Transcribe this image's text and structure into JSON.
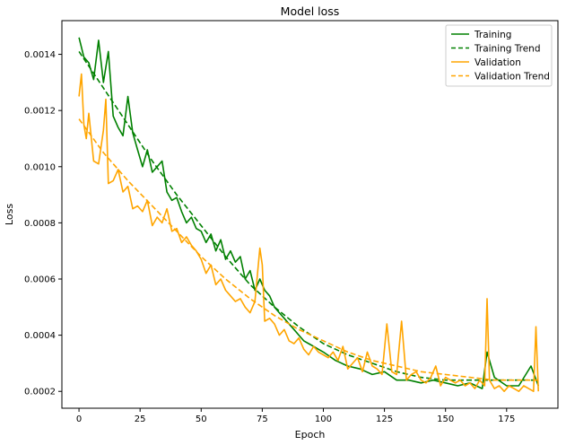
{
  "chart_data": {
    "type": "line",
    "title": "Model loss",
    "xlabel": "Epoch",
    "ylabel": "Loss",
    "xlim": [
      -7,
      196
    ],
    "ylim": [
      0.00014,
      0.00152
    ],
    "xticks": [
      0,
      25,
      50,
      75,
      100,
      125,
      150,
      175
    ],
    "yticks": [
      0.0002,
      0.0004,
      0.0006,
      0.0008,
      0.001,
      0.0012,
      0.0014
    ],
    "xtick_labels": [
      "0",
      "25",
      "50",
      "75",
      "100",
      "125",
      "150",
      "175"
    ],
    "ytick_labels": [
      "0.0002",
      "0.0004",
      "0.0006",
      "0.0008",
      "0.0010",
      "0.0012",
      "0.0014"
    ],
    "grid": false,
    "legend_position": "top-right",
    "series": [
      {
        "name": "Training",
        "color": "#008000",
        "dash": "solid",
        "x": [
          0,
          2,
          4,
          6,
          8,
          10,
          12,
          14,
          16,
          18,
          20,
          22,
          24,
          26,
          28,
          30,
          32,
          34,
          36,
          38,
          40,
          42,
          44,
          46,
          48,
          50,
          52,
          54,
          56,
          58,
          60,
          62,
          64,
          66,
          68,
          70,
          72,
          74,
          76,
          78,
          80,
          82,
          84,
          86,
          88,
          90,
          92,
          94,
          96,
          98,
          100,
          105,
          110,
          115,
          120,
          125,
          130,
          135,
          140,
          145,
          150,
          155,
          160,
          165,
          167,
          170,
          175,
          180,
          185,
          188
        ],
        "y": [
          0.00146,
          0.00139,
          0.00137,
          0.00131,
          0.00145,
          0.0013,
          0.00141,
          0.00118,
          0.00114,
          0.00111,
          0.00125,
          0.00112,
          0.00106,
          0.001,
          0.00106,
          0.00098,
          0.001,
          0.00102,
          0.00091,
          0.00088,
          0.00089,
          0.00084,
          0.0008,
          0.00082,
          0.00078,
          0.00077,
          0.00073,
          0.00076,
          0.0007,
          0.00074,
          0.00067,
          0.0007,
          0.00066,
          0.00068,
          0.0006,
          0.00063,
          0.00056,
          0.0006,
          0.00056,
          0.00054,
          0.0005,
          0.00048,
          0.00046,
          0.00044,
          0.00042,
          0.0004,
          0.00038,
          0.00037,
          0.00036,
          0.00035,
          0.00034,
          0.00031,
          0.00029,
          0.00028,
          0.00026,
          0.00027,
          0.00024,
          0.00024,
          0.00023,
          0.00024,
          0.00023,
          0.00022,
          0.00023,
          0.00021,
          0.00034,
          0.00025,
          0.00022,
          0.00022,
          0.00029,
          0.00022
        ]
      },
      {
        "name": "Training Trend",
        "color": "#008000",
        "dash": "dashed",
        "x": [
          0,
          10,
          20,
          30,
          40,
          50,
          60,
          70,
          80,
          90,
          100,
          110,
          120,
          130,
          140,
          150,
          160,
          170,
          180,
          188
        ],
        "y": [
          0.00141,
          0.00128,
          0.00115,
          0.00102,
          0.0009,
          0.00079,
          0.00068,
          0.00058,
          0.0005,
          0.00043,
          0.00037,
          0.00033,
          0.0003,
          0.00027,
          0.00025,
          0.00024,
          0.00024,
          0.00024,
          0.00024,
          0.00024
        ]
      },
      {
        "name": "Validation",
        "color": "#FFA500",
        "dash": "solid",
        "x": [
          0,
          1,
          2,
          3,
          4,
          6,
          8,
          10,
          11,
          12,
          14,
          16,
          18,
          20,
          22,
          24,
          26,
          28,
          30,
          32,
          34,
          36,
          38,
          40,
          42,
          44,
          46,
          48,
          50,
          52,
          54,
          56,
          58,
          60,
          62,
          64,
          66,
          68,
          70,
          72,
          74,
          75,
          76,
          78,
          80,
          82,
          84,
          86,
          88,
          90,
          92,
          94,
          96,
          98,
          100,
          102,
          104,
          106,
          108,
          110,
          112,
          114,
          116,
          118,
          120,
          122,
          124,
          126,
          128,
          130,
          132,
          134,
          136,
          138,
          140,
          142,
          144,
          146,
          148,
          150,
          152,
          154,
          156,
          158,
          160,
          162,
          164,
          166,
          167,
          168,
          170,
          172,
          174,
          176,
          178,
          180,
          182,
          184,
          186,
          187,
          188
        ],
        "y": [
          0.00125,
          0.00133,
          0.00115,
          0.0011,
          0.00119,
          0.00102,
          0.00101,
          0.00113,
          0.00124,
          0.00094,
          0.00095,
          0.00099,
          0.00091,
          0.00093,
          0.00085,
          0.00086,
          0.00084,
          0.00088,
          0.00079,
          0.00082,
          0.0008,
          0.00085,
          0.00077,
          0.00078,
          0.00073,
          0.00075,
          0.00072,
          0.0007,
          0.00067,
          0.00062,
          0.00065,
          0.00058,
          0.0006,
          0.00056,
          0.00054,
          0.00052,
          0.00053,
          0.0005,
          0.00048,
          0.00052,
          0.00071,
          0.00065,
          0.00045,
          0.00046,
          0.00044,
          0.0004,
          0.00042,
          0.00038,
          0.00037,
          0.00039,
          0.00035,
          0.00033,
          0.00036,
          0.00034,
          0.00033,
          0.00032,
          0.00034,
          0.00031,
          0.00036,
          0.00028,
          0.0003,
          0.00032,
          0.00027,
          0.00034,
          0.00029,
          0.00028,
          0.00026,
          0.00044,
          0.00027,
          0.00026,
          0.00045,
          0.00024,
          0.00026,
          0.00027,
          0.00024,
          0.00023,
          0.00025,
          0.00029,
          0.00022,
          0.00025,
          0.00024,
          0.00023,
          0.00024,
          0.00022,
          0.00023,
          0.00021,
          0.00024,
          0.00022,
          0.00053,
          0.00024,
          0.00021,
          0.00022,
          0.0002,
          0.00022,
          0.00021,
          0.0002,
          0.00022,
          0.00021,
          0.0002,
          0.00043,
          0.0002
        ]
      },
      {
        "name": "Validation Trend",
        "color": "#FFA500",
        "dash": "dashed",
        "x": [
          0,
          10,
          20,
          30,
          40,
          50,
          60,
          70,
          80,
          90,
          100,
          110,
          120,
          130,
          140,
          150,
          160,
          170,
          180,
          188
        ],
        "y": [
          0.00117,
          0.00105,
          0.00095,
          0.00086,
          0.00077,
          0.00068,
          0.0006,
          0.00053,
          0.00047,
          0.00042,
          0.00038,
          0.00034,
          0.00031,
          0.00029,
          0.00027,
          0.00026,
          0.00025,
          0.00024,
          0.00024,
          0.00024
        ]
      }
    ]
  }
}
